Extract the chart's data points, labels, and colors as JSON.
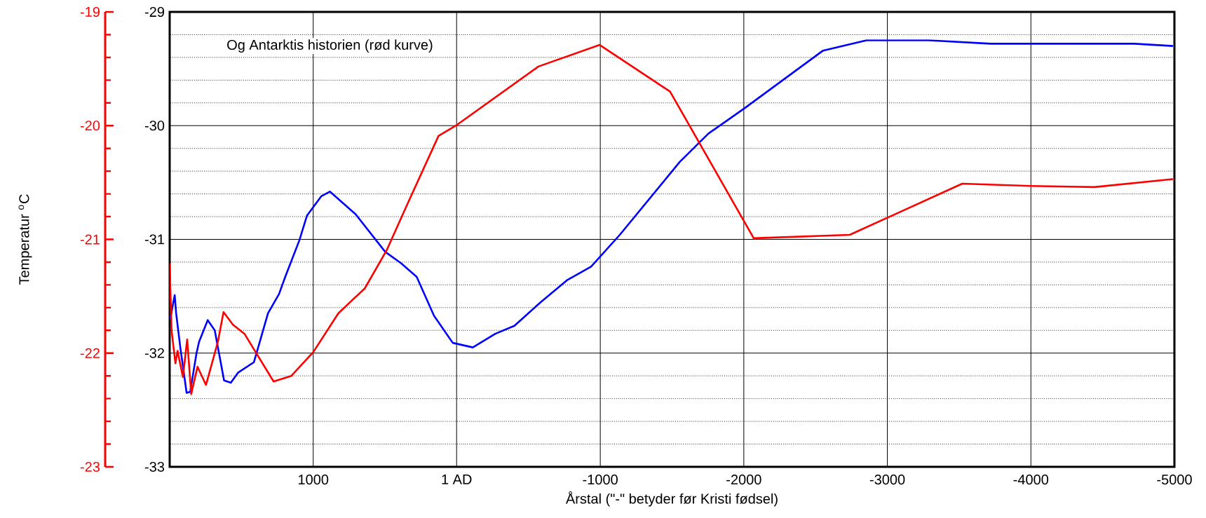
{
  "chart_data": {
    "type": "line",
    "y2label": "Temperatur $^{o}$C",
    "xlabel": "Årstal (\"-\" betyder før Kristi fødsel)",
    "annotations": [
      "Og Antarktis historien (rød kurve)"
    ],
    "xlim": [
      2000,
      -5000
    ],
    "xticks": [
      1000,
      {
        "value": 1,
        "label": "1 AD"
      },
      -1000,
      -2000,
      -3000,
      -4000,
      -5000
    ],
    "ylim": [
      -33,
      -29
    ],
    "yticks": [
      -33,
      -32,
      -31,
      -30,
      -29
    ],
    "y2lim": [
      -23,
      -19
    ],
    "y2ticks": [
      -23,
      -22,
      -21,
      -20,
      -19
    ],
    "grid": true,
    "marker": "none",
    "line_style": "solid",
    "series": [
      {
        "color": "#0000ff",
        "x": [
          1996,
          1965,
          1955,
          1926,
          1882,
          1857,
          1813,
          1795,
          1735,
          1686,
          1621,
          1574,
          1522,
          1413,
          1315,
          1238,
          1195,
          1097,
          1043,
          943,
          884,
          704,
          498,
          388,
          279,
          159,
          28,
          -112,
          -269,
          -402,
          -587,
          -767,
          -936,
          -1136,
          -1553,
          -1753,
          -2002,
          -2552,
          -2855,
          -3289,
          -3722,
          -4721,
          -4990
        ],
        "values": [
          -31.7,
          -31.49,
          -31.65,
          -31.95,
          -32.35,
          -32.34,
          -32.0,
          -31.9,
          -31.71,
          -31.8,
          -32.24,
          -32.26,
          -32.17,
          -32.08,
          -31.65,
          -31.48,
          -31.33,
          -31.01,
          -30.79,
          -30.62,
          -30.58,
          -30.78,
          -31.11,
          -31.21,
          -31.33,
          -31.67,
          -31.91,
          -31.95,
          -31.83,
          -31.76,
          -31.55,
          -31.36,
          -31.24,
          -30.96,
          -30.32,
          -30.07,
          -29.85,
          -29.34,
          -29.25,
          -29.25,
          -29.28,
          -29.28,
          -29.3
        ]
      },
      {
        "color": "#ff0000",
        "axis": "y2",
        "x": [
          2000,
          1987,
          1960,
          1945,
          1908,
          1878,
          1850,
          1806,
          1747,
          1664,
          1625,
          1559,
          1479,
          1276,
          1152,
          999,
          825,
          640,
          486,
          333,
          127,
          6,
          -569,
          -996,
          -1486,
          -2069,
          -2738,
          -3522,
          -3993,
          -4443,
          -4990
        ],
        "values": [
          -21.21,
          -21.8,
          -22.09,
          -21.98,
          -22.21,
          -21.88,
          -22.36,
          -22.12,
          -22.28,
          -21.9,
          -21.64,
          -21.75,
          -21.83,
          -22.25,
          -22.2,
          -21.99,
          -21.65,
          -21.43,
          -21.09,
          -20.66,
          -20.09,
          -20.0,
          -19.48,
          -19.29,
          -19.7,
          -20.99,
          -20.96,
          -20.51,
          -20.53,
          -20.54,
          -20.47
        ]
      }
    ]
  }
}
